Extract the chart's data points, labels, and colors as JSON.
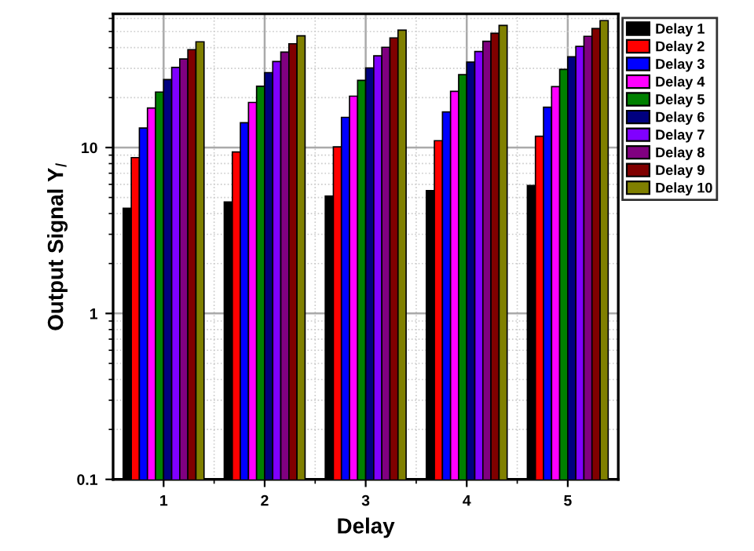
{
  "chart_data": {
    "type": "bar",
    "xlabel": "Delay",
    "ylabel": "Output Signal Y$_{I}$",
    "categories": [
      "1",
      "2",
      "3",
      "4",
      "5"
    ],
    "series": [
      {
        "name": "Delay 1",
        "color": "#000000",
        "values": [
          4.3,
          4.7,
          5.1,
          5.5,
          5.9
        ]
      },
      {
        "name": "Delay 2",
        "color": "#ff0000",
        "values": [
          8.7,
          9.4,
          10.1,
          11,
          11.7
        ]
      },
      {
        "name": "Delay 3",
        "color": "#0000ff",
        "values": [
          13.1,
          14.1,
          15.2,
          16.4,
          17.5
        ]
      },
      {
        "name": "Delay 4",
        "color": "#ff00ff",
        "values": [
          17.3,
          18.7,
          20.4,
          21.8,
          23.3
        ]
      },
      {
        "name": "Delay 5",
        "color": "#008000",
        "values": [
          21.6,
          23.4,
          25.4,
          27.5,
          29.6
        ]
      },
      {
        "name": "Delay 6",
        "color": "#000080",
        "values": [
          25.7,
          28.3,
          30.2,
          32.7,
          35.2
        ]
      },
      {
        "name": "Delay 7",
        "color": "#8000ff",
        "values": [
          30.4,
          33,
          35.7,
          37.9,
          40.7
        ]
      },
      {
        "name": "Delay 8",
        "color": "#800080",
        "values": [
          34.2,
          37.6,
          40.2,
          43.7,
          46.8
        ]
      },
      {
        "name": "Delay 9",
        "color": "#800000",
        "values": [
          38.9,
          42.2,
          45.8,
          48.8,
          52.1
        ]
      },
      {
        "name": "Delay 10",
        "color": "#808000",
        "values": [
          43.4,
          47.1,
          51,
          54.5,
          58.2
        ]
      }
    ],
    "log": "y",
    "ylim": [
      0.1,
      64
    ],
    "yticks": [
      0.1,
      1,
      10
    ],
    "grid": true,
    "legend": "top right"
  }
}
